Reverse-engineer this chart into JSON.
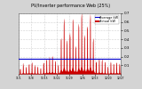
{
  "title": "PV/Inverter performance Web (25%)",
  "legend_actual": "Actual kW",
  "legend_average": "Average kW",
  "bg_color": "#d4d4d4",
  "plot_bg_color": "#ffffff",
  "grid_color": "#aaaaaa",
  "actual_color": "#cc0000",
  "average_color": "#0000cc",
  "average_value": 0.18,
  "ylim": [
    0,
    0.7
  ],
  "ytick_values": [
    0.1,
    0.2,
    0.3,
    0.4,
    0.5,
    0.6,
    0.7
  ],
  "num_points": 600,
  "seed": 7,
  "days": 35
}
